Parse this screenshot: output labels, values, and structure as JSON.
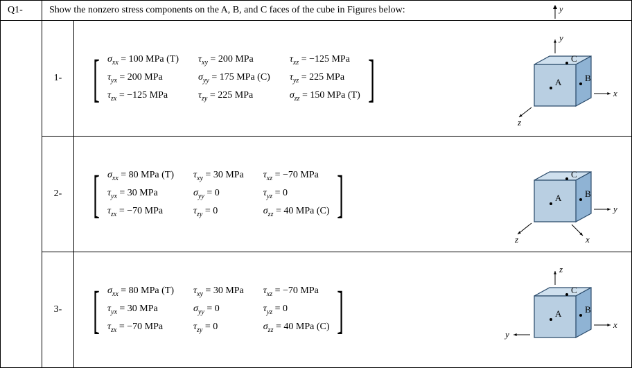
{
  "header": {
    "q": "Q1-",
    "text": "Show the nonzero stress components on the A, B, and C faces of the cube in Figures below:"
  },
  "parts": [
    {
      "id": "1-",
      "m": [
        [
          "σxx = 100 MPa (T)",
          "τxy = 200 MPa",
          "τxz = −125 MPa"
        ],
        [
          "τyx = 200 MPa",
          "σyy = 175 MPa (C)",
          "τyz = 225 MPa"
        ],
        [
          "τzx = −125 MPa",
          "τzy = 225 MPa",
          "σzz = 150 MPa (T)"
        ]
      ],
      "axes": {
        "up": "y",
        "right": "x",
        "down": "z"
      }
    },
    {
      "id": "2-",
      "m": [
        [
          "σxx = 80 MPa (T)",
          "τxy = 30 MPa",
          "τxz = −70 MPa"
        ],
        [
          "τyx = 30 MPa",
          "σyy = 0",
          "τyz = 0"
        ],
        [
          "τzx = −70 MPa",
          "τzy = 0",
          "σzz = 40 MPa (C)"
        ]
      ],
      "axes": {
        "up": "",
        "right": "y",
        "downL": "z",
        "downR": "x"
      }
    },
    {
      "id": "3-",
      "m": [
        [
          "σxx = 80 MPa (T)",
          "τxy = 30 MPa",
          "τxz = −70 MPa"
        ],
        [
          "τyx = 30 MPa",
          "σyy = 0",
          "τyz = 0"
        ],
        [
          "τzx = −70 MPa",
          "τzy = 0",
          "σzz = 40 MPa (C)"
        ]
      ],
      "axes": {
        "up": "z",
        "left": "y",
        "right": "x"
      }
    }
  ],
  "cube": {
    "fillTop": "#cfe0ee",
    "fillRight": "#8fb3d4",
    "fillFront": "#b9cfe2",
    "stroke": "#2a4a6a",
    "strokeW": 1.2,
    "labels": {
      "A": "A",
      "B": "B",
      "C": "C"
    },
    "dotColor": "#000"
  },
  "axisStyle": {
    "stroke": "#000",
    "strokeW": 1,
    "font": "italic 12px Times New Roman"
  }
}
